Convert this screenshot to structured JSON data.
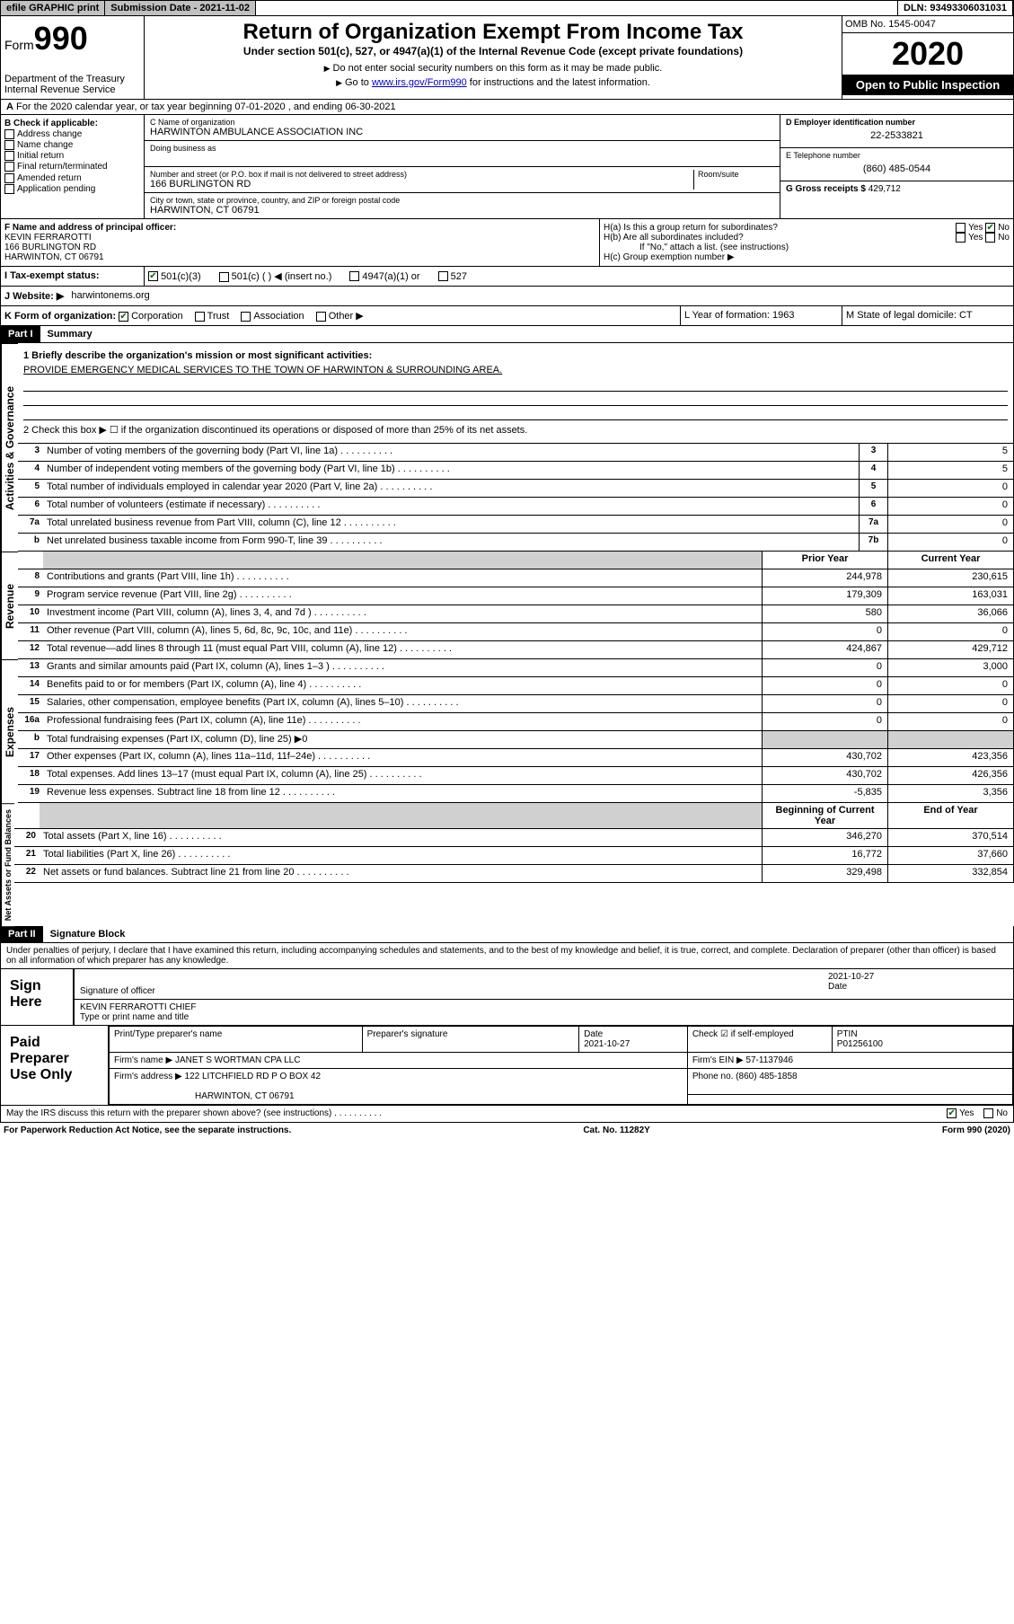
{
  "topbar": {
    "efile": "efile GRAPHIC print",
    "submission_label": "Submission Date - 2021-11-02",
    "dln_label": "DLN: 93493306031031"
  },
  "header": {
    "form_word": "Form",
    "form_num": "990",
    "dept": "Department of the Treasury\nInternal Revenue Service",
    "title": "Return of Organization Exempt From Income Tax",
    "subtitle": "Under section 501(c), 527, or 4947(a)(1) of the Internal Revenue Code (except private foundations)",
    "inst1": "Do not enter social security numbers on this form as it may be made public.",
    "inst2_pre": "Go to ",
    "inst2_link": "www.irs.gov/Form990",
    "inst2_post": " for instructions and the latest information.",
    "omb": "OMB No. 1545-0047",
    "year": "2020",
    "open": "Open to Public Inspection"
  },
  "section_a": "For the 2020 calendar year, or tax year beginning 07-01-2020    , and ending 06-30-2021",
  "box_b": {
    "label": "B Check if applicable:",
    "items": [
      "Address change",
      "Name change",
      "Initial return",
      "Final return/terminated",
      "Amended return",
      "Application pending"
    ]
  },
  "box_c": {
    "name_label": "C Name of organization",
    "name": "HARWINTON AMBULANCE ASSOCIATION INC",
    "dba_label": "Doing business as",
    "addr_label": "Number and street (or P.O. box if mail is not delivered to street address)",
    "room_label": "Room/suite",
    "addr": "166 BURLINGTON RD",
    "city_label": "City or town, state or province, country, and ZIP or foreign postal code",
    "city": "HARWINTON, CT  06791"
  },
  "box_d": {
    "label": "D Employer identification number",
    "val": "22-2533821"
  },
  "box_e": {
    "label": "E Telephone number",
    "val": "(860) 485-0544"
  },
  "box_g": {
    "label": "G Gross receipts $",
    "val": "429,712"
  },
  "box_f": {
    "label": "F  Name and address of principal officer:",
    "name": "KEVIN FERRAROTTI",
    "addr1": "166 BURLINGTON RD",
    "addr2": "HARWINTON, CT  06791"
  },
  "box_h": {
    "ha": "H(a)  Is this a group return for subordinates?",
    "hb": "H(b)  Are all subordinates included?",
    "hb_note": "If \"No,\" attach a list. (see instructions)",
    "hc": "H(c)  Group exemption number ▶",
    "yes": "Yes",
    "no": "No"
  },
  "row_i": {
    "label": "I    Tax-exempt status:",
    "o1": "501(c)(3)",
    "o2": "501(c) (   ) ◀ (insert no.)",
    "o3": "4947(a)(1) or",
    "o4": "527"
  },
  "row_j": {
    "label": "J   Website: ▶",
    "val": "harwintonems.org"
  },
  "row_k": {
    "label": "K Form of organization:",
    "o1": "Corporation",
    "o2": "Trust",
    "o3": "Association",
    "o4": "Other ▶",
    "l": "L Year of formation: 1963",
    "m": "M State of legal domicile: CT"
  },
  "part1": {
    "header": "Part I",
    "title": "Summary"
  },
  "summary": {
    "l1_label": "1   Briefly describe the organization's mission or most significant activities:",
    "l1_val": "PROVIDE EMERGENCY MEDICAL SERVICES TO THE TOWN OF HARWINTON & SURROUNDING AREA.",
    "l2": "2    Check this box ▶ ☐  if the organization discontinued its operations or disposed of more than 25% of its net assets."
  },
  "gov_lines": [
    {
      "n": "3",
      "d": "Number of voting members of the governing body (Part VI, line 1a)",
      "b": "3",
      "v": "5"
    },
    {
      "n": "4",
      "d": "Number of independent voting members of the governing body (Part VI, line 1b)",
      "b": "4",
      "v": "5"
    },
    {
      "n": "5",
      "d": "Total number of individuals employed in calendar year 2020 (Part V, line 2a)",
      "b": "5",
      "v": "0"
    },
    {
      "n": "6",
      "d": "Total number of volunteers (estimate if necessary)",
      "b": "6",
      "v": "0"
    },
    {
      "n": "7a",
      "d": "Total unrelated business revenue from Part VIII, column (C), line 12",
      "b": "7a",
      "v": "0"
    },
    {
      "n": "b",
      "d": "Net unrelated business taxable income from Form 990-T, line 39",
      "b": "7b",
      "v": "0"
    }
  ],
  "col_headers": {
    "prior": "Prior Year",
    "current": "Current Year",
    "begin": "Beginning of Current Year",
    "end": "End of Year"
  },
  "revenue_lines": [
    {
      "n": "8",
      "d": "Contributions and grants (Part VIII, line 1h)",
      "p": "244,978",
      "c": "230,615"
    },
    {
      "n": "9",
      "d": "Program service revenue (Part VIII, line 2g)",
      "p": "179,309",
      "c": "163,031"
    },
    {
      "n": "10",
      "d": "Investment income (Part VIII, column (A), lines 3, 4, and 7d )",
      "p": "580",
      "c": "36,066"
    },
    {
      "n": "11",
      "d": "Other revenue (Part VIII, column (A), lines 5, 6d, 8c, 9c, 10c, and 11e)",
      "p": "0",
      "c": "0"
    },
    {
      "n": "12",
      "d": "Total revenue—add lines 8 through 11 (must equal Part VIII, column (A), line 12)",
      "p": "424,867",
      "c": "429,712"
    }
  ],
  "expense_lines": [
    {
      "n": "13",
      "d": "Grants and similar amounts paid (Part IX, column (A), lines 1–3 )",
      "p": "0",
      "c": "3,000"
    },
    {
      "n": "14",
      "d": "Benefits paid to or for members (Part IX, column (A), line 4)",
      "p": "0",
      "c": "0"
    },
    {
      "n": "15",
      "d": "Salaries, other compensation, employee benefits (Part IX, column (A), lines 5–10)",
      "p": "0",
      "c": "0"
    },
    {
      "n": "16a",
      "d": "Professional fundraising fees (Part IX, column (A), line 11e)",
      "p": "0",
      "c": "0"
    },
    {
      "n": "b",
      "d": "Total fundraising expenses (Part IX, column (D), line 25) ▶0",
      "p": "",
      "c": "",
      "grey": true
    },
    {
      "n": "17",
      "d": "Other expenses (Part IX, column (A), lines 11a–11d, 11f–24e)",
      "p": "430,702",
      "c": "423,356"
    },
    {
      "n": "18",
      "d": "Total expenses. Add lines 13–17 (must equal Part IX, column (A), line 25)",
      "p": "430,702",
      "c": "426,356"
    },
    {
      "n": "19",
      "d": "Revenue less expenses. Subtract line 18 from line 12",
      "p": "-5,835",
      "c": "3,356"
    }
  ],
  "net_lines": [
    {
      "n": "20",
      "d": "Total assets (Part X, line 16)",
      "p": "346,270",
      "c": "370,514"
    },
    {
      "n": "21",
      "d": "Total liabilities (Part X, line 26)",
      "p": "16,772",
      "c": "37,660"
    },
    {
      "n": "22",
      "d": "Net assets or fund balances. Subtract line 21 from line 20",
      "p": "329,498",
      "c": "332,854"
    }
  ],
  "vlabels": {
    "gov": "Activities & Governance",
    "rev": "Revenue",
    "exp": "Expenses",
    "net": "Net Assets or Fund Balances"
  },
  "part2": {
    "header": "Part II",
    "title": "Signature Block"
  },
  "perjury": "Under penalties of perjury, I declare that I have examined this return, including accompanying schedules and statements, and to the best of my knowledge and belief, it is true, correct, and complete. Declaration of preparer (other than officer) is based on all information of which preparer has any knowledge.",
  "sign": {
    "label": "Sign Here",
    "sig_of_officer": "Signature of officer",
    "date": "2021-10-27",
    "date_label": "Date",
    "name": "KEVIN FERRAROTTI  CHIEF",
    "name_label": "Type or print name and title"
  },
  "prep": {
    "label": "Paid Preparer Use Only",
    "h1": "Print/Type preparer's name",
    "h2": "Preparer's signature",
    "h3": "Date",
    "h3v": "2021-10-27",
    "h4": "Check ☑ if self-employed",
    "h5": "PTIN",
    "h5v": "P01256100",
    "firm_label": "Firm's name    ▶",
    "firm": "JANET S WORTMAN CPA LLC",
    "ein_label": "Firm's EIN ▶",
    "ein": "57-1137946",
    "addr_label": "Firm's address ▶",
    "addr1": "122 LITCHFIELD RD P O BOX 42",
    "addr2": "HARWINTON, CT  06791",
    "phone_label": "Phone no.",
    "phone": "(860) 485-1858"
  },
  "discuss": {
    "q": "May the IRS discuss this return with the preparer shown above? (see instructions)",
    "yes": "Yes",
    "no": "No"
  },
  "footer": {
    "left": "For Paperwork Reduction Act Notice, see the separate instructions.",
    "mid": "Cat. No. 11282Y",
    "right": "Form 990 (2020)"
  }
}
